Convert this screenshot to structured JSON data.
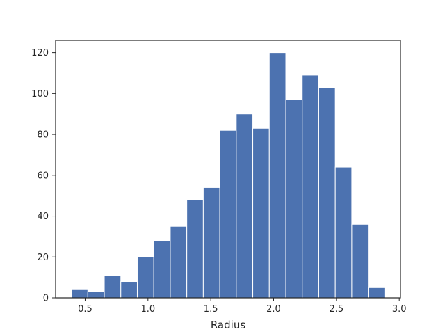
{
  "chart_data": {
    "type": "bar",
    "subtype": "histogram",
    "title": "",
    "xlabel": "Radius",
    "ylabel": "",
    "bin_edges": [
      0.39,
      0.5213,
      0.6526,
      0.7839,
      0.9152,
      1.0465,
      1.1778,
      1.3091,
      1.4404,
      1.5717,
      1.703,
      1.8343,
      1.9656,
      2.0969,
      2.2282,
      2.3595,
      2.4908,
      2.6221,
      2.7534,
      2.8847
    ],
    "values": [
      4,
      3,
      11,
      8,
      20,
      28,
      35,
      48,
      54,
      82,
      90,
      83,
      120,
      97,
      109,
      103,
      64,
      36,
      5
    ],
    "xlim": [
      0.265,
      3.01
    ],
    "ylim": [
      0,
      126
    ],
    "xticks": [
      0.5,
      1.0,
      1.5,
      2.0,
      2.5,
      3.0
    ],
    "xtick_labels": [
      "0.5",
      "1.0",
      "1.5",
      "2.0",
      "2.5",
      "3.0"
    ],
    "yticks": [
      0,
      20,
      40,
      60,
      80,
      100,
      120
    ],
    "ytick_labels": [
      "0",
      "20",
      "40",
      "60",
      "80",
      "100",
      "120"
    ],
    "bar_color": "#4c72b0",
    "edge_color": "#ffffff",
    "grid": false,
    "legend": "none"
  }
}
